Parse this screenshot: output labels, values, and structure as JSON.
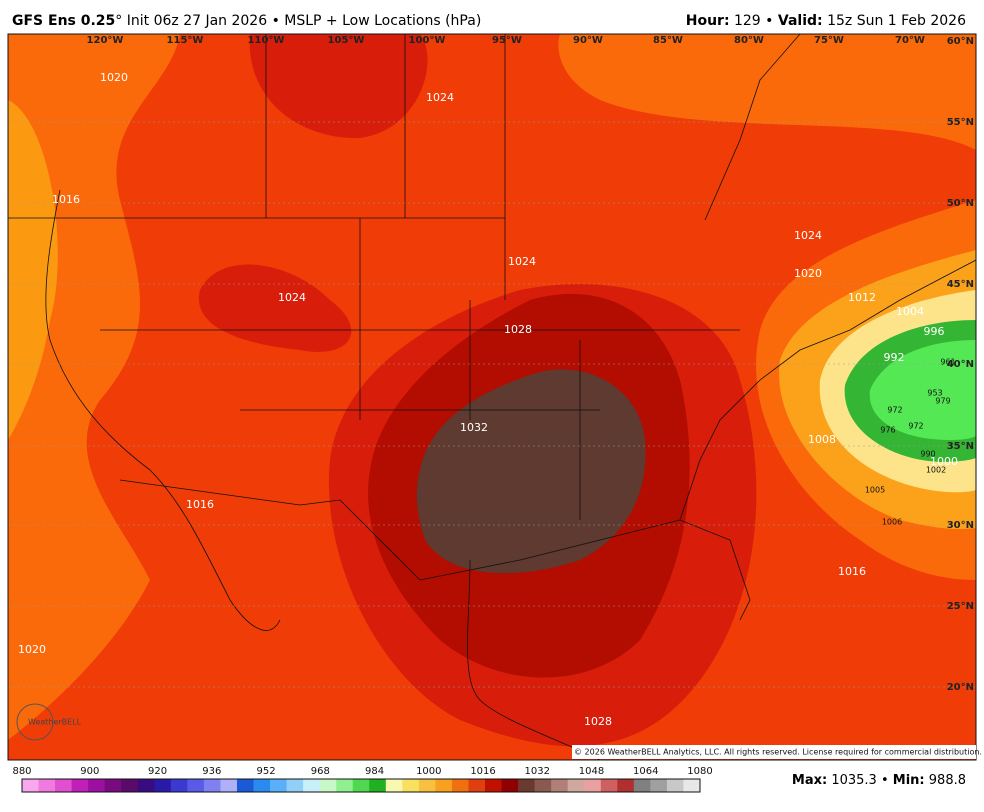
{
  "header": {
    "model": "GFS Ens 0.25",
    "rest": "° Init 06z 27 Jan 2026 • MSLP + Low Locations (hPa)",
    "hour_label": "Hour:",
    "hour": " 129 • ",
    "valid_label": "Valid:",
    "valid": " 15z Sun 1 Feb 2026"
  },
  "longitudes": [
    "120°W",
    "115°W",
    "110°W",
    "105°W",
    "100°W",
    "95°W",
    "90°W",
    "85°W",
    "80°W",
    "75°W",
    "70°W"
  ],
  "latitudes": [
    "60°N",
    "55°N",
    "50°N",
    "45°N",
    "40°N",
    "35°N",
    "30°N",
    "25°N",
    "20°N"
  ],
  "contour_labels": [
    "1020",
    "1024",
    "1016",
    "1024",
    "1024",
    "1028",
    "1032",
    "1024",
    "1020",
    "1012",
    "1004",
    "996",
    "992",
    "1016",
    "1020",
    "1028",
    "1016",
    "1000",
    "1008"
  ],
  "low_labels": [
    "1005",
    "1006",
    "1002",
    "990",
    "972",
    "976",
    "953",
    "979",
    "961",
    "972"
  ],
  "copyright": "© 2026 WeatherBELL Analytics, LLC. All rights reserved. License required for commercial distribution.",
  "logo": "WeatherBELL",
  "colorbar": {
    "ticks": [
      880,
      900,
      920,
      936,
      952,
      968,
      984,
      1000,
      1016,
      1032,
      1048,
      1064,
      1080
    ]
  },
  "footer": {
    "max_label": "Max:",
    "max": "1035.3",
    "min_label": "Min:",
    "min": "988.8"
  }
}
